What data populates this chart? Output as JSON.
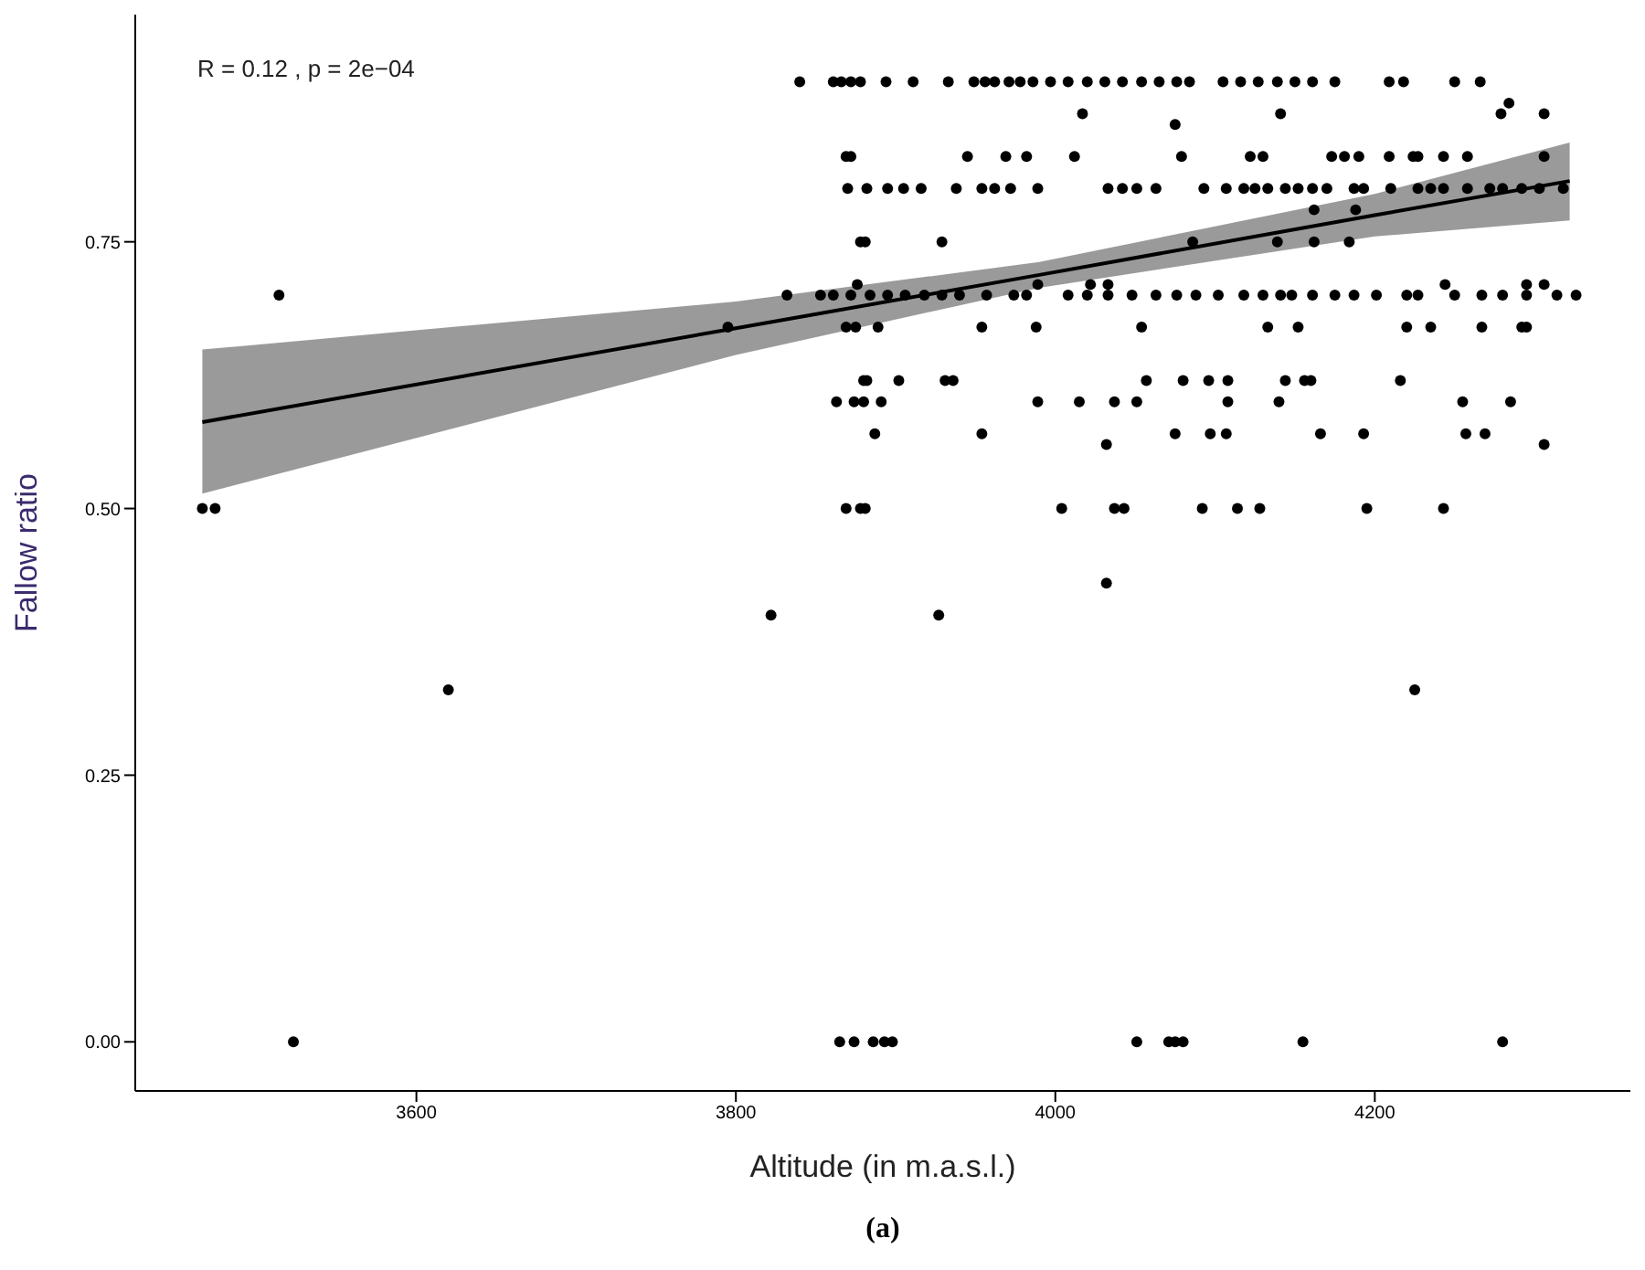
{
  "chart_data": {
    "type": "scatter",
    "xlabel": "Altitude (in m.a.s.l.)",
    "ylabel": "Fallow ratio",
    "marker": "circle",
    "annotations": [
      "R = 0.12 , p = 2e−04",
      "(a)"
    ],
    "xlim": [
      3424,
      4360
    ],
    "xticks": [
      3600,
      3800,
      4000,
      4200
    ],
    "ylim": [
      -0.046,
      0.963
    ],
    "yticks": [
      {
        "value": 0,
        "label": "0.00"
      },
      {
        "value": 0.25,
        "label": "0.25"
      },
      {
        "value": 0.5,
        "label": "0.50"
      },
      {
        "value": 0.75,
        "label": "0.75"
      }
    ],
    "series": [
      {
        "color": "#000000",
        "x": [
          3840,
          3861,
          3866,
          3872,
          3878,
          3894,
          3911,
          3933,
          3949,
          3956,
          3962,
          3971,
          3978,
          3986,
          3997,
          4008,
          4020,
          4031,
          4042,
          4054,
          4065,
          4076,
          4084,
          4105,
          4116,
          4127,
          4139,
          4150,
          4161,
          4175,
          4209,
          4218,
          4250,
          4266,
          4017,
          4141,
          4279,
          4306,
          4284,
          4075,
          3869,
          3872,
          3945,
          3969,
          3982,
          4012,
          4079,
          4122,
          4130,
          4173,
          4181,
          4190,
          4209,
          4224,
          4227,
          4243,
          4258,
          4306,
          3870,
          3882,
          3895,
          3905,
          3916,
          3938,
          3954,
          3962,
          3972,
          3989,
          4033,
          4042,
          4051,
          4063,
          4093,
          4107,
          4118,
          4125,
          4133,
          4144,
          4152,
          4161,
          4170,
          4187,
          4193,
          4210,
          4227,
          4235,
          4243,
          4258,
          4272,
          4280,
          4292,
          4303,
          4318,
          4162,
          4188,
          3878,
          3881,
          3929,
          4086,
          4139,
          4162,
          4184,
          3876,
          3989,
          4022,
          4033,
          4244,
          4295,
          4306,
          3514,
          3832,
          3853,
          3861,
          3872,
          3884,
          3895,
          3906,
          3918,
          3929,
          3940,
          3957,
          3974,
          3982,
          4008,
          4020,
          4033,
          4048,
          4063,
          4076,
          4088,
          4102,
          4118,
          4130,
          4141,
          4148,
          4161,
          4175,
          4187,
          4201,
          4220,
          4227,
          4250,
          4267,
          4280,
          4295,
          4314,
          4326,
          3795,
          3869,
          3875,
          3889,
          3954,
          3988,
          4054,
          4133,
          4152,
          4220,
          4235,
          4267,
          4292,
          4295,
          3880,
          3882,
          3902,
          3931,
          3936,
          4057,
          4080,
          4096,
          4108,
          4144,
          4156,
          4160,
          4216,
          3863,
          3874,
          3880,
          3891,
          3989,
          4015,
          4037,
          4051,
          4108,
          4140,
          4255,
          4285,
          3887,
          3954,
          4075,
          4097,
          4107,
          4166,
          4193,
          4257,
          4269,
          4032,
          4306,
          3466,
          3474,
          3869,
          3878,
          3881,
          4004,
          4037,
          4043,
          4092,
          4114,
          4128,
          4195,
          4243,
          4032,
          3822,
          3927,
          3620,
          4225,
          3523,
          3865,
          3874,
          3886,
          3893,
          3898,
          4051,
          4071,
          4075,
          4080,
          4155,
          4280
        ],
        "values": [
          0.9,
          0.9,
          0.9,
          0.9,
          0.9,
          0.9,
          0.9,
          0.9,
          0.9,
          0.9,
          0.9,
          0.9,
          0.9,
          0.9,
          0.9,
          0.9,
          0.9,
          0.9,
          0.9,
          0.9,
          0.9,
          0.9,
          0.9,
          0.9,
          0.9,
          0.9,
          0.9,
          0.9,
          0.9,
          0.9,
          0.9,
          0.9,
          0.9,
          0.9,
          0.87,
          0.87,
          0.87,
          0.87,
          0.88,
          0.86,
          0.83,
          0.83,
          0.83,
          0.83,
          0.83,
          0.83,
          0.83,
          0.83,
          0.83,
          0.83,
          0.83,
          0.83,
          0.83,
          0.83,
          0.83,
          0.83,
          0.83,
          0.83,
          0.8,
          0.8,
          0.8,
          0.8,
          0.8,
          0.8,
          0.8,
          0.8,
          0.8,
          0.8,
          0.8,
          0.8,
          0.8,
          0.8,
          0.8,
          0.8,
          0.8,
          0.8,
          0.8,
          0.8,
          0.8,
          0.8,
          0.8,
          0.8,
          0.8,
          0.8,
          0.8,
          0.8,
          0.8,
          0.8,
          0.8,
          0.8,
          0.8,
          0.8,
          0.8,
          0.78,
          0.78,
          0.75,
          0.75,
          0.75,
          0.75,
          0.75,
          0.75,
          0.75,
          0.71,
          0.71,
          0.71,
          0.71,
          0.71,
          0.71,
          0.71,
          0.7,
          0.7,
          0.7,
          0.7,
          0.7,
          0.7,
          0.7,
          0.7,
          0.7,
          0.7,
          0.7,
          0.7,
          0.7,
          0.7,
          0.7,
          0.7,
          0.7,
          0.7,
          0.7,
          0.7,
          0.7,
          0.7,
          0.7,
          0.7,
          0.7,
          0.7,
          0.7,
          0.7,
          0.7,
          0.7,
          0.7,
          0.7,
          0.7,
          0.7,
          0.7,
          0.7,
          0.7,
          0.7,
          0.67,
          0.67,
          0.67,
          0.67,
          0.67,
          0.67,
          0.67,
          0.67,
          0.67,
          0.67,
          0.67,
          0.67,
          0.67,
          0.67,
          0.62,
          0.62,
          0.62,
          0.62,
          0.62,
          0.62,
          0.62,
          0.62,
          0.62,
          0.62,
          0.62,
          0.62,
          0.62,
          0.6,
          0.6,
          0.6,
          0.6,
          0.6,
          0.6,
          0.6,
          0.6,
          0.6,
          0.6,
          0.6,
          0.6,
          0.57,
          0.57,
          0.57,
          0.57,
          0.57,
          0.57,
          0.57,
          0.57,
          0.57,
          0.56,
          0.56,
          0.5,
          0.5,
          0.5,
          0.5,
          0.5,
          0.5,
          0.5,
          0.5,
          0.5,
          0.5,
          0.5,
          0.5,
          0.5,
          0.43,
          0.4,
          0.4,
          0.33,
          0.33,
          0,
          0,
          0,
          0,
          0,
          0,
          0,
          0,
          0,
          0,
          0,
          0
        ]
      },
      {
        "type": "line",
        "marker": "none",
        "color": "#000000",
        "x": [
          3466,
          3800,
          3990,
          4200,
          4322
        ],
        "values": [
          0.581,
          0.669,
          0.719,
          0.775,
          0.807
        ],
        "lower": [
          0.514,
          0.644,
          0.707,
          0.755,
          0.77
        ],
        "upper": [
          0.649,
          0.694,
          0.731,
          0.795,
          0.843
        ]
      }
    ]
  }
}
